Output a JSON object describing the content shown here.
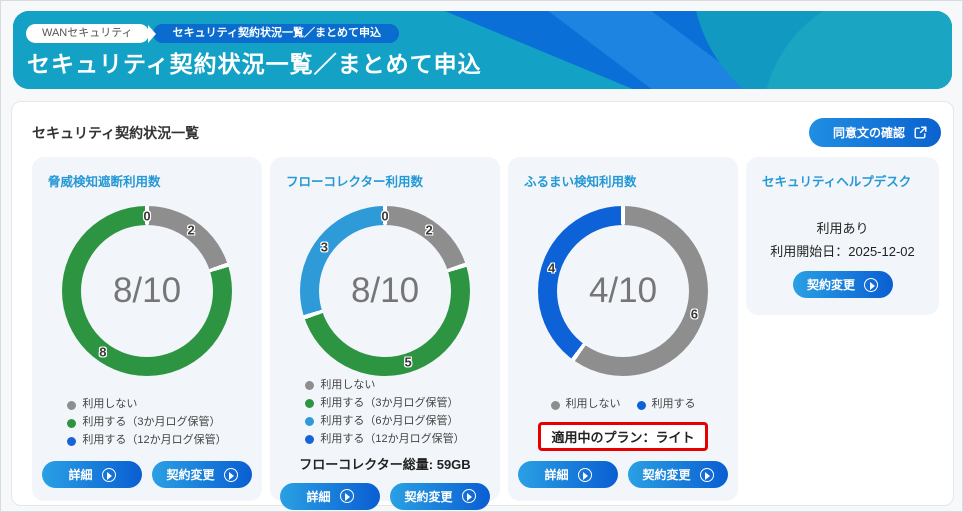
{
  "header": {
    "breadcrumb_1": "WANセキュリティ",
    "breadcrumb_2": "セキュリティ契約状況一覧／まとめて申込",
    "title": "セキュリティ契約状況一覧／まとめて申込"
  },
  "section": {
    "heading": "セキュリティ契約状況一覧",
    "consent_button": "同意文の確認"
  },
  "buttons": {
    "detail": "詳細",
    "change": "契約変更"
  },
  "colors": {
    "header_teal": "#13a2c6",
    "header_blue": "#0a6fd6",
    "card_title_blue": "#2598d6",
    "button_gradient_start": "#2aa0e4",
    "button_gradient_end": "#0a5ed2",
    "plan_box_border": "#e60000",
    "segment_gray": "#8e8e8e",
    "segment_green": "#2d9542",
    "segment_light_blue": "#2e9ad8",
    "segment_blue": "#1565d8",
    "segment_dark_blue": "#0d62d8"
  },
  "cards": [
    {
      "title": "脅威検知遮断利用数"
    },
    {
      "title": "フローコレクター利用数",
      "total_text": "フローコレクター総量: 59GB"
    },
    {
      "title": "ふるまい検知利用数",
      "plan_text": "適用中のプラン：ライト"
    },
    {
      "title": "セキュリティヘルプデスク",
      "status_text": "利用あり",
      "start_date_text": "利用開始日：2025-12-02"
    }
  ],
  "chart_data": [
    {
      "type": "pie",
      "title": "脅威検知遮断利用数",
      "center_label": "8/10",
      "used": 8,
      "max": 10,
      "legend_position": "bottom",
      "segments": [
        {
          "label": "利用しない",
          "value": 2,
          "color": "#8e8e8e"
        },
        {
          "label": "利用する（3か月ログ保管）",
          "value": 8,
          "color": "#2d9542"
        },
        {
          "label": "利用する（12か月ログ保管）",
          "value": 0,
          "color": "#1565d8"
        }
      ]
    },
    {
      "type": "pie",
      "title": "フローコレクター利用数",
      "center_label": "8/10",
      "used": 8,
      "max": 10,
      "legend_position": "bottom",
      "segments": [
        {
          "label": "利用しない",
          "value": 2,
          "color": "#8e8e8e"
        },
        {
          "label": "利用する（3か月ログ保管）",
          "value": 5,
          "color": "#2d9542"
        },
        {
          "label": "利用する（6か月ログ保管）",
          "value": 3,
          "color": "#2e9ad8"
        },
        {
          "label": "利用する（12か月ログ保管）",
          "value": 0,
          "color": "#1565d8"
        }
      ]
    },
    {
      "type": "pie",
      "title": "ふるまい検知利用数",
      "center_label": "4/10",
      "used": 4,
      "max": 10,
      "legend_position": "bottom",
      "segments": [
        {
          "label": "利用しない",
          "value": 6,
          "color": "#8e8e8e"
        },
        {
          "label": "利用する",
          "value": 4,
          "color": "#0d62d8"
        }
      ]
    }
  ]
}
